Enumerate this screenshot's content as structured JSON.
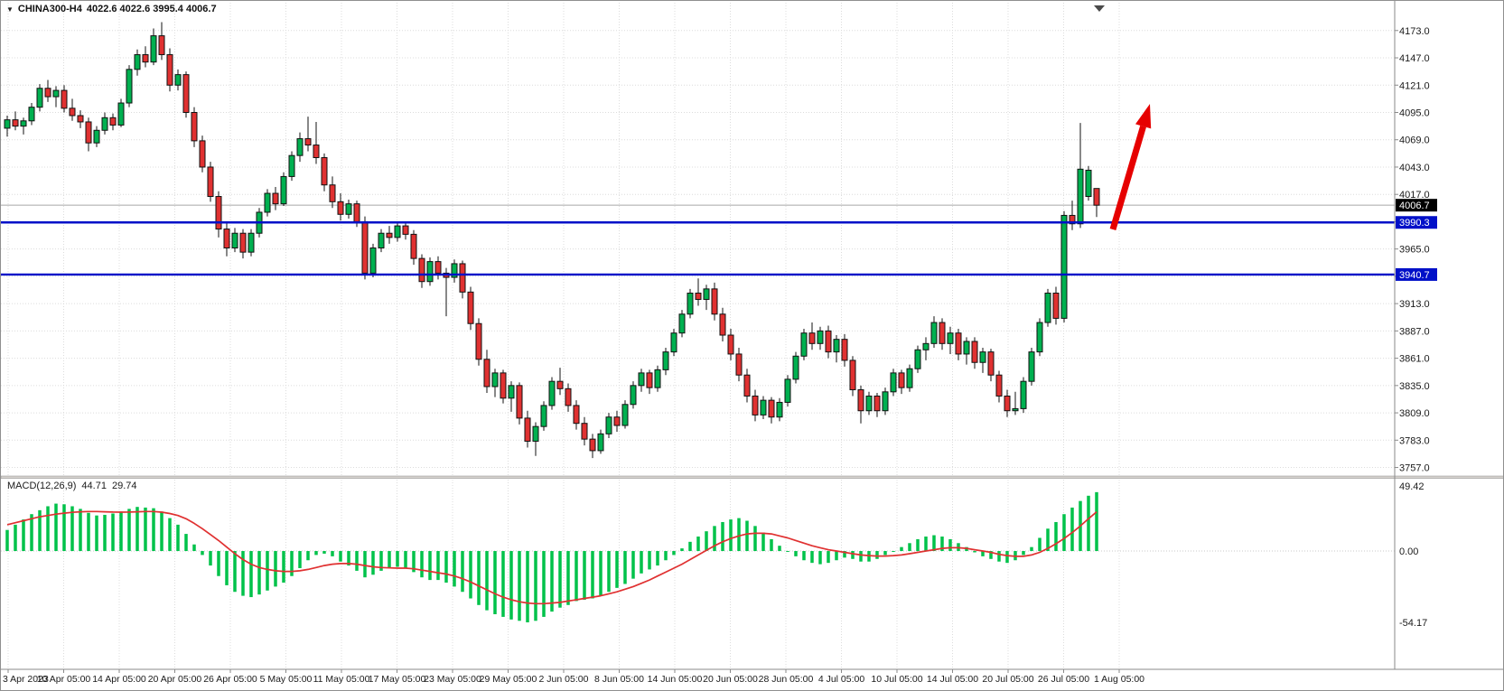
{
  "header": {
    "dropdown_glyph": "▼",
    "symbol": "CHINA300-H4",
    "ohlc": "4022.6 4022.6 3995.4 4006.7"
  },
  "chart_data": {
    "type": "candlestick",
    "title": "CHINA300-H4",
    "timeframe": "H4",
    "price_axis": {
      "ticks": [
        4173,
        4147,
        4121,
        4095,
        4069,
        4043,
        4017,
        3991,
        3965,
        3939,
        3913,
        3887,
        3861,
        3835,
        3809,
        3783,
        3757
      ],
      "hidden_tick_labels": [
        3991,
        3939
      ],
      "ylim": [
        3748,
        4184
      ]
    },
    "current_price": {
      "value": 4006.7,
      "label": "4006.7"
    },
    "hlines": [
      {
        "value": 3990.3,
        "label": "3990.3"
      },
      {
        "value": 3940.7,
        "label": "3940.7"
      }
    ],
    "time_axis": {
      "labels": [
        "3 Apr 2023",
        "10 Apr 05:00",
        "14 Apr 05:00",
        "20 Apr 05:00",
        "26 Apr 05:00",
        "5 May 05:00",
        "11 May 05:00",
        "17 May 05:00",
        "23 May 05:00",
        "29 May 05:00",
        "2 Jun 05:00",
        "8 Jun 05:00",
        "14 Jun 05:00",
        "20 Jun 05:00",
        "28 Jun 05:00",
        "4 Jul 05:00",
        "10 Jul 05:00",
        "14 Jul 05:00",
        "20 Jul 05:00",
        "26 Jul 05:00",
        "1 Aug 05:00"
      ]
    },
    "candles": [
      [
        4080,
        4092,
        4072,
        4088
      ],
      [
        4088,
        4096,
        4078,
        4082
      ],
      [
        4082,
        4090,
        4074,
        4087
      ],
      [
        4087,
        4104,
        4083,
        4100
      ],
      [
        4100,
        4122,
        4096,
        4118
      ],
      [
        4118,
        4126,
        4105,
        4110
      ],
      [
        4110,
        4120,
        4100,
        4116
      ],
      [
        4116,
        4121,
        4095,
        4099
      ],
      [
        4099,
        4108,
        4087,
        4092
      ],
      [
        4092,
        4097,
        4080,
        4086
      ],
      [
        4086,
        4090,
        4058,
        4066
      ],
      [
        4066,
        4082,
        4062,
        4078
      ],
      [
        4078,
        4095,
        4074,
        4090
      ],
      [
        4090,
        4094,
        4078,
        4083
      ],
      [
        4083,
        4108,
        4081,
        4104
      ],
      [
        4104,
        4140,
        4100,
        4136
      ],
      [
        4136,
        4155,
        4130,
        4150
      ],
      [
        4150,
        4158,
        4138,
        4143
      ],
      [
        4143,
        4175,
        4140,
        4168
      ],
      [
        4168,
        4181,
        4145,
        4150
      ],
      [
        4150,
        4156,
        4115,
        4121
      ],
      [
        4121,
        4136,
        4116,
        4131
      ],
      [
        4131,
        4134,
        4090,
        4095
      ],
      [
        4095,
        4100,
        4062,
        4068
      ],
      [
        4068,
        4073,
        4038,
        4043
      ],
      [
        4043,
        4048,
        4010,
        4015
      ],
      [
        4015,
        4020,
        3976,
        3984
      ],
      [
        3984,
        3990,
        3958,
        3966
      ],
      [
        3966,
        3985,
        3962,
        3980
      ],
      [
        3980,
        3984,
        3956,
        3962
      ],
      [
        3962,
        3984,
        3958,
        3980
      ],
      [
        3980,
        4004,
        3976,
        4000
      ],
      [
        4000,
        4022,
        3996,
        4018
      ],
      [
        4018,
        4024,
        4002,
        4008
      ],
      [
        4008,
        4038,
        4006,
        4034
      ],
      [
        4034,
        4058,
        4030,
        4054
      ],
      [
        4054,
        4076,
        4048,
        4070
      ],
      [
        4070,
        4091,
        4058,
        4064
      ],
      [
        4064,
        4086,
        4046,
        4052
      ],
      [
        4052,
        4056,
        4020,
        4026
      ],
      [
        4026,
        4034,
        4004,
        4010
      ],
      [
        4010,
        4018,
        3992,
        3998
      ],
      [
        3998,
        4012,
        3994,
        4008
      ],
      [
        4008,
        4011,
        3986,
        3991
      ],
      [
        3991,
        3996,
        3936,
        3942
      ],
      [
        3942,
        3970,
        3938,
        3966
      ],
      [
        3966,
        3984,
        3962,
        3980
      ],
      [
        3980,
        3987,
        3970,
        3976
      ],
      [
        3976,
        3991,
        3972,
        3987
      ],
      [
        3987,
        3990,
        3974,
        3979
      ],
      [
        3979,
        3983,
        3950,
        3956
      ],
      [
        3956,
        3960,
        3928,
        3934
      ],
      [
        3934,
        3957,
        3930,
        3953
      ],
      [
        3953,
        3958,
        3936,
        3942
      ],
      [
        3942,
        3947,
        3901,
        3938
      ],
      [
        3938,
        3955,
        3933,
        3951
      ],
      [
        3951,
        3954,
        3918,
        3924
      ],
      [
        3924,
        3929,
        3888,
        3894
      ],
      [
        3894,
        3899,
        3854,
        3860
      ],
      [
        3860,
        3869,
        3828,
        3834
      ],
      [
        3834,
        3851,
        3824,
        3847
      ],
      [
        3847,
        3850,
        3818,
        3823
      ],
      [
        3823,
        3839,
        3810,
        3835
      ],
      [
        3835,
        3838,
        3798,
        3804
      ],
      [
        3804,
        3811,
        3776,
        3782
      ],
      [
        3782,
        3800,
        3768,
        3796
      ],
      [
        3796,
        3820,
        3792,
        3816
      ],
      [
        3816,
        3843,
        3812,
        3839
      ],
      [
        3839,
        3852,
        3826,
        3832
      ],
      [
        3832,
        3837,
        3810,
        3816
      ],
      [
        3816,
        3821,
        3793,
        3799
      ],
      [
        3799,
        3805,
        3778,
        3784
      ],
      [
        3784,
        3789,
        3766,
        3773
      ],
      [
        3773,
        3793,
        3770,
        3789
      ],
      [
        3789,
        3809,
        3785,
        3805
      ],
      [
        3805,
        3811,
        3791,
        3797
      ],
      [
        3797,
        3821,
        3794,
        3817
      ],
      [
        3817,
        3839,
        3813,
        3835
      ],
      [
        3835,
        3851,
        3829,
        3847
      ],
      [
        3847,
        3850,
        3827,
        3833
      ],
      [
        3833,
        3854,
        3829,
        3850
      ],
      [
        3850,
        3871,
        3845,
        3867
      ],
      [
        3867,
        3889,
        3863,
        3885
      ],
      [
        3885,
        3907,
        3881,
        3903
      ],
      [
        3903,
        3927,
        3899,
        3923
      ],
      [
        3923,
        3937,
        3911,
        3917
      ],
      [
        3917,
        3931,
        3907,
        3927
      ],
      [
        3927,
        3933,
        3897,
        3903
      ],
      [
        3903,
        3909,
        3877,
        3883
      ],
      [
        3883,
        3889,
        3859,
        3865
      ],
      [
        3865,
        3871,
        3839,
        3845
      ],
      [
        3845,
        3851,
        3819,
        3825
      ],
      [
        3825,
        3831,
        3801,
        3807
      ],
      [
        3807,
        3825,
        3803,
        3821
      ],
      [
        3821,
        3824,
        3799,
        3805
      ],
      [
        3805,
        3823,
        3801,
        3819
      ],
      [
        3819,
        3845,
        3815,
        3841
      ],
      [
        3841,
        3867,
        3837,
        3863
      ],
      [
        3863,
        3889,
        3859,
        3885
      ],
      [
        3885,
        3895,
        3869,
        3875
      ],
      [
        3875,
        3891,
        3869,
        3887
      ],
      [
        3887,
        3892,
        3861,
        3867
      ],
      [
        3867,
        3883,
        3857,
        3879
      ],
      [
        3879,
        3884,
        3853,
        3859
      ],
      [
        3859,
        3863,
        3825,
        3831
      ],
      [
        3831,
        3835,
        3799,
        3811
      ],
      [
        3811,
        3829,
        3807,
        3825
      ],
      [
        3825,
        3828,
        3805,
        3811
      ],
      [
        3811,
        3833,
        3807,
        3829
      ],
      [
        3829,
        3851,
        3825,
        3847
      ],
      [
        3847,
        3850,
        3827,
        3833
      ],
      [
        3833,
        3855,
        3829,
        3851
      ],
      [
        3851,
        3873,
        3847,
        3869
      ],
      [
        3869,
        3881,
        3859,
        3875
      ],
      [
        3875,
        3901,
        3871,
        3895
      ],
      [
        3895,
        3899,
        3869,
        3875
      ],
      [
        3875,
        3891,
        3865,
        3885
      ],
      [
        3885,
        3889,
        3859,
        3865
      ],
      [
        3865,
        3881,
        3855,
        3877
      ],
      [
        3877,
        3881,
        3851,
        3857
      ],
      [
        3857,
        3871,
        3847,
        3867
      ],
      [
        3867,
        3870,
        3839,
        3845
      ],
      [
        3845,
        3849,
        3819,
        3825
      ],
      [
        3825,
        3831,
        3805,
        3811
      ],
      [
        3811,
        3829,
        3807,
        3813
      ],
      [
        3813,
        3843,
        3809,
        3839
      ],
      [
        3839,
        3871,
        3835,
        3867
      ],
      [
        3867,
        3899,
        3863,
        3895
      ],
      [
        3895,
        3927,
        3891,
        3923
      ],
      [
        3923,
        3929,
        3893,
        3899
      ],
      [
        3899,
        4001,
        3895,
        3997
      ],
      [
        3997,
        4011,
        3983,
        3989
      ],
      [
        3989,
        4085,
        3985,
        4041
      ],
      [
        4015,
        4044,
        4011,
        4040
      ],
      [
        4022.6,
        4022.6,
        3995.4,
        4006.7
      ]
    ],
    "macd": {
      "name": "MACD(12,26,9)",
      "main_value": "44.71",
      "signal_value": "29.74",
      "axis_ticks": [
        {
          "value": 49.42,
          "label": "49.42"
        },
        {
          "value": 0,
          "label": "0.00"
        },
        {
          "value": -54.17,
          "label": "-54.17"
        }
      ],
      "hist": [
        16,
        20,
        24,
        28,
        31,
        34,
        36,
        35.5,
        34,
        32,
        29,
        27,
        27.5,
        28.5,
        30,
        32,
        33.5,
        33,
        32.5,
        30,
        25,
        20,
        13,
        5,
        -3,
        -11,
        -19,
        -26,
        -31,
        -34,
        -35,
        -33,
        -30,
        -27,
        -24,
        -19,
        -13,
        -7,
        -3,
        -2,
        -4,
        -8,
        -11,
        -15,
        -20,
        -18,
        -15,
        -13,
        -12,
        -13,
        -16,
        -20,
        -22,
        -22,
        -24,
        -27,
        -31,
        -36,
        -41,
        -45,
        -48,
        -50,
        -52,
        -53,
        -54.17,
        -53,
        -50,
        -46,
        -43,
        -41,
        -38,
        -37,
        -36,
        -34,
        -31,
        -28,
        -25,
        -21,
        -17,
        -14,
        -11,
        -7,
        -3,
        2,
        7,
        11,
        15,
        19,
        22,
        24,
        25,
        23,
        19,
        14,
        9,
        4,
        0,
        -4,
        -7,
        -9,
        -10,
        -9,
        -7,
        -5,
        -6,
        -8,
        -8,
        -6,
        -3,
        0,
        3,
        6,
        9,
        11,
        12,
        11,
        9,
        6,
        3,
        -1,
        -4,
        -6,
        -8,
        -9,
        -7,
        -3,
        3,
        10,
        17,
        22,
        28,
        33,
        38,
        42,
        44.71
      ],
      "signal": [
        20,
        21.5,
        23,
        24.5,
        26,
        27,
        28,
        28.8,
        29.4,
        29.8,
        30,
        30,
        29.8,
        29.6,
        29.5,
        29.6,
        29.8,
        30,
        30,
        29.5,
        28.5,
        27,
        24.5,
        21,
        17,
        12.5,
        8,
        3,
        -2,
        -6.5,
        -10,
        -12.5,
        -14,
        -15,
        -15.5,
        -15.5,
        -15,
        -14,
        -12.5,
        -11,
        -10,
        -9.5,
        -9.5,
        -10,
        -11,
        -12,
        -12.5,
        -12.8,
        -13,
        -13,
        -13.5,
        -14.5,
        -15.5,
        -16.5,
        -17.5,
        -19,
        -21,
        -23.5,
        -26.5,
        -29.5,
        -32.5,
        -35,
        -37,
        -38.5,
        -39.5,
        -40,
        -40,
        -39.5,
        -39,
        -38,
        -37,
        -36,
        -35,
        -34,
        -32.5,
        -31,
        -29,
        -27,
        -24.5,
        -22,
        -19,
        -16,
        -13,
        -10,
        -6.5,
        -3,
        0.5,
        4,
        7,
        9.5,
        11.5,
        13,
        13.5,
        13.5,
        13,
        11.5,
        10,
        8,
        6,
        4,
        2.5,
        1,
        0,
        -1,
        -2,
        -3,
        -3.5,
        -3.8,
        -3.8,
        -3.5,
        -3,
        -2,
        -1,
        0,
        1,
        2,
        2.5,
        2.5,
        2,
        1,
        0,
        -1,
        -2.5,
        -3.5,
        -4,
        -4,
        -3,
        -1,
        2,
        5.5,
        9.5,
        14,
        19,
        24.5,
        29.74
      ]
    },
    "annotations": {
      "arrow": {
        "direction": "up"
      }
    },
    "colors": {
      "up": "#00B050",
      "down": "#E03131",
      "wick": "#111111",
      "candle_border": "#111111",
      "hist": "#00C24A",
      "signal": "#E03131",
      "hline": "#0010C8",
      "grid": "#DCDCDC",
      "axis_text": "#1a1a1a",
      "current_line": "#A6A6A6",
      "current_badge_bg": "#000000",
      "arrow": "#E60000"
    }
  }
}
